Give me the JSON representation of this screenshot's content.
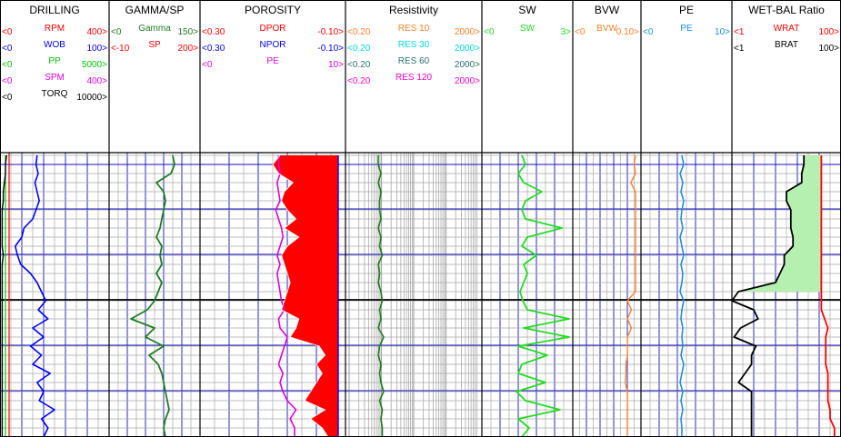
{
  "chart_data": {
    "type": "line",
    "depth_tracks": true,
    "colors": {
      "red": "#ff0000",
      "blue": "#0000ff",
      "green": "#00c800",
      "magenta": "#e000e0",
      "black": "#000000",
      "darkgreen": "#1e7d1e",
      "orange": "#ff7f27",
      "cyan": "#00d8d8",
      "teal": "#2c6e70",
      "pink": "#ff00cc",
      "ltgreen": "#22dd22",
      "peblue": "#1a8fe0",
      "fill_red": "#ff0000",
      "fill_green": "#b6f0b0",
      "grid_major": "#1010c0",
      "grid_minor": "#a9a9a9"
    },
    "tracks": [
      {
        "title": "DRILLING",
        "grid": "linear",
        "curves": [
          {
            "name": "RPM",
            "min": "<0",
            "max": "400>",
            "color": "red"
          },
          {
            "name": "WOB",
            "min": "<0",
            "max": "100>",
            "color": "blue"
          },
          {
            "name": "PP",
            "min": "<0",
            "max": "5000>",
            "color": "green"
          },
          {
            "name": "SPM",
            "min": "<0",
            "max": "400>",
            "color": "magenta"
          },
          {
            "name": "TORQ",
            "min": "<0",
            "max": "10000>",
            "color": "black"
          }
        ]
      },
      {
        "title": "GAMMA/SP",
        "grid": "linear",
        "curves": [
          {
            "name": "Gamma",
            "min": "<0",
            "max": "150>",
            "color": "darkgreen"
          },
          {
            "name": "SP",
            "min": "<-10",
            "max": "200>",
            "color": "red"
          }
        ]
      },
      {
        "title": "POROSITY",
        "grid": "linear",
        "curves": [
          {
            "name": "DPOR",
            "min": "<0.30",
            "max": "-0.10>",
            "color": "red"
          },
          {
            "name": "NPOR",
            "min": "<0.30",
            "max": "-0.10>",
            "color": "blue"
          },
          {
            "name": "PE",
            "min": "<0",
            "max": "10>",
            "color": "magenta"
          }
        ]
      },
      {
        "title": "Resistivity",
        "grid": "log",
        "curves": [
          {
            "name": "RES 10",
            "min": "<0.20",
            "max": "2000>",
            "color": "orange"
          },
          {
            "name": "RES 30",
            "min": "<0.20",
            "max": "2000>",
            "color": "cyan"
          },
          {
            "name": "RES 60",
            "min": "<0.20",
            "max": "2000>",
            "color": "teal"
          },
          {
            "name": "RES 120",
            "min": "<0.20",
            "max": "2000>",
            "color": "pink"
          }
        ]
      },
      {
        "title": "SW",
        "grid": "linear",
        "curves": [
          {
            "name": "SW",
            "min": "<0",
            "max": "3>",
            "color": "ltgreen"
          }
        ]
      },
      {
        "title": "BVW",
        "grid": "linear",
        "curves": [
          {
            "name": "BVW",
            "min": "<0",
            "max": "0.10>",
            "color": "orange"
          }
        ]
      },
      {
        "title": "PE",
        "grid": "linear",
        "curves": [
          {
            "name": "PE",
            "min": "<0",
            "max": "10>",
            "color": "peblue"
          }
        ]
      },
      {
        "title": "WET-BAL Ratio",
        "grid": "linear",
        "curves": [
          {
            "name": "WRAT",
            "min": "<1",
            "max": "100>",
            "color": "red"
          },
          {
            "name": "BRAT",
            "min": "<1",
            "max": "100>",
            "color": "black"
          }
        ]
      }
    ],
    "depth_samples": 32,
    "curves_data": {
      "drilling_wob": [
        0.34,
        0.33,
        0.35,
        0.32,
        0.34,
        0.36,
        0.33,
        0.3,
        0.22,
        0.2,
        0.14,
        0.16,
        0.19,
        0.28,
        0.34,
        0.38,
        0.42,
        0.35,
        0.44,
        0.3,
        0.4,
        0.28,
        0.38,
        0.3,
        0.46,
        0.34,
        0.4,
        0.36,
        0.5,
        0.38,
        0.44,
        0.4
      ],
      "drilling_torq": [
        0.06,
        0.05,
        0.05,
        0.04,
        0.03,
        0.03,
        0.02,
        0.02,
        0.02,
        0.02,
        0.02,
        0.03,
        0.02,
        0.02,
        0.02,
        0.02,
        0.02,
        0.02,
        0.02,
        0.02,
        0.02,
        0.02,
        0.02,
        0.02,
        0.02,
        0.02,
        0.02,
        0.02,
        0.02,
        0.02,
        0.02,
        0.02
      ],
      "drilling_pp": [
        0.05,
        0.05,
        0.05,
        0.05,
        0.05,
        0.05,
        0.05,
        0.05,
        0.05,
        0.05,
        0.05,
        0.05,
        0.05,
        0.05,
        0.05,
        0.05,
        0.05,
        0.05,
        0.05,
        0.05,
        0.05,
        0.05,
        0.05,
        0.05,
        0.05,
        0.05,
        0.05,
        0.05,
        0.05,
        0.05,
        0.05,
        0.05
      ],
      "gamma": [
        0.7,
        0.72,
        0.68,
        0.52,
        0.6,
        0.62,
        0.6,
        0.58,
        0.56,
        0.52,
        0.58,
        0.56,
        0.58,
        0.52,
        0.58,
        0.54,
        0.5,
        0.42,
        0.24,
        0.5,
        0.4,
        0.6,
        0.44,
        0.54,
        0.58,
        0.6,
        0.62,
        0.64,
        0.66,
        0.62,
        0.6,
        0.62
      ],
      "porosity_pe": [
        0.54,
        0.54,
        0.55,
        0.53,
        0.54,
        0.55,
        0.52,
        0.54,
        0.56,
        0.57,
        0.55,
        0.53,
        0.55,
        0.53,
        0.54,
        0.55,
        0.56,
        0.58,
        0.54,
        0.55,
        0.6,
        0.58,
        0.56,
        0.54,
        0.57,
        0.55,
        0.57,
        0.6,
        0.66,
        0.62,
        0.65,
        0.65
      ],
      "dpor": [
        0.55,
        0.5,
        0.54,
        0.64,
        0.58,
        0.56,
        0.6,
        0.66,
        0.58,
        0.68,
        0.6,
        0.56,
        0.58,
        0.6,
        0.62,
        0.6,
        0.58,
        0.56,
        0.68,
        0.66,
        0.62,
        0.82,
        0.86,
        0.8,
        0.84,
        0.8,
        0.76,
        0.72,
        0.86,
        0.76,
        0.84,
        0.88
      ],
      "npor": [
        0.95,
        0.95,
        0.95,
        0.95,
        0.95,
        0.95,
        0.95,
        0.95,
        0.95,
        0.95,
        0.95,
        0.95,
        0.95,
        0.95,
        0.95,
        0.95,
        0.95,
        0.95,
        0.95,
        0.95,
        0.95,
        0.95,
        0.95,
        0.95,
        0.95,
        0.95,
        0.95,
        0.95,
        0.95,
        0.95,
        0.95,
        0.95
      ],
      "resistivity": [
        0.24,
        0.24,
        0.26,
        0.24,
        0.26,
        0.25,
        0.25,
        0.26,
        0.24,
        0.26,
        0.25,
        0.27,
        0.24,
        0.25,
        0.24,
        0.26,
        0.27,
        0.25,
        0.26,
        0.24,
        0.28,
        0.25,
        0.24,
        0.26,
        0.25,
        0.26,
        0.28,
        0.25,
        0.27,
        0.26,
        0.27,
        0.27
      ],
      "sw": [
        0.44,
        0.48,
        0.4,
        0.46,
        0.66,
        0.48,
        0.44,
        0.48,
        0.88,
        0.5,
        0.44,
        0.6,
        0.46,
        0.5,
        0.46,
        0.42,
        0.45,
        0.5,
        0.96,
        0.46,
        0.96,
        0.4,
        0.72,
        0.44,
        0.4,
        0.7,
        0.38,
        0.48,
        0.86,
        0.4,
        0.52,
        0.44
      ],
      "bvw": [
        0.92,
        0.9,
        0.92,
        0.85,
        0.92,
        0.92,
        0.92,
        0.92,
        0.92,
        0.92,
        0.92,
        0.92,
        0.92,
        0.92,
        0.92,
        0.92,
        0.8,
        0.86,
        0.8,
        0.86,
        0.8,
        0.8,
        0.8,
        0.78,
        0.78,
        0.77,
        0.8,
        0.8,
        0.8,
        0.8,
        0.8,
        0.8
      ],
      "pe": [
        0.45,
        0.47,
        0.43,
        0.46,
        0.44,
        0.47,
        0.45,
        0.44,
        0.46,
        0.43,
        0.45,
        0.47,
        0.44,
        0.46,
        0.45,
        0.43,
        0.47,
        0.45,
        0.44,
        0.46,
        0.45,
        0.46,
        0.44,
        0.47,
        0.45,
        0.43,
        0.46,
        0.44,
        0.46,
        0.44,
        0.45,
        0.45
      ],
      "wrat": [
        0.82,
        0.82,
        0.82,
        0.82,
        0.82,
        0.82,
        0.82,
        0.82,
        0.82,
        0.82,
        0.82,
        0.82,
        0.82,
        0.82,
        0.82,
        0.82,
        0.82,
        0.82,
        0.85,
        0.88,
        0.86,
        0.86,
        0.86,
        0.86,
        0.88,
        0.88,
        0.88,
        0.88,
        0.9,
        0.9,
        0.94,
        0.94
      ],
      "brat": [
        0.66,
        0.66,
        0.64,
        0.64,
        0.5,
        0.5,
        0.54,
        0.54,
        0.54,
        0.56,
        0.56,
        0.48,
        0.48,
        0.44,
        0.4,
        0.06,
        0.0,
        0.2,
        0.24,
        0.08,
        0.02,
        0.22,
        0.18,
        0.18,
        0.12,
        0.06,
        0.18,
        0.18,
        0.18,
        0.18,
        0.18,
        0.18
      ]
    }
  }
}
